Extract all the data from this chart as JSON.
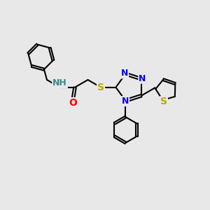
{
  "bg_color": "#e8e8e8",
  "bond_color": "#000000",
  "bond_width": 1.5,
  "font_size": 9,
  "atom_colors": {
    "N": "#0000ee",
    "O": "#ff0000",
    "S": "#bbaa00",
    "H": "#3a8888"
  }
}
